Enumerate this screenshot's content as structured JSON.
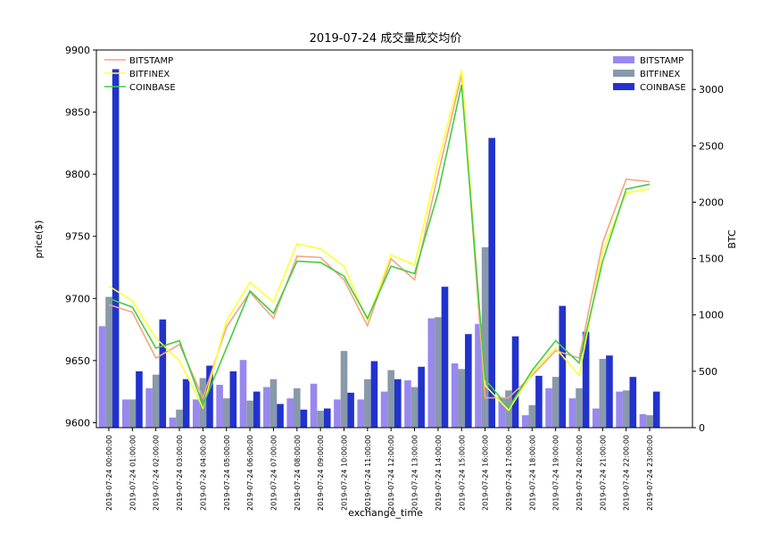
{
  "chart_data": {
    "type": "bar",
    "title": "2019-07-24 成交量成交均价",
    "xlabel": "exchange_time",
    "ylabel_left": "price($)",
    "ylabel_right": "BTC",
    "ylim_left": [
      9596,
      9900
    ],
    "ylim_right": [
      0,
      3350
    ],
    "yticks_left": [
      9600,
      9650,
      9700,
      9750,
      9800,
      9850,
      9900
    ],
    "yticks_right": [
      0,
      500,
      1000,
      1500,
      2000,
      2500,
      3000
    ],
    "categories": [
      "2019-07-24 00:00:00",
      "2019-07-24 01:00:00",
      "2019-07-24 02:00:00",
      "2019-07-24 03:00:00",
      "2019-07-24 04:00:00",
      "2019-07-24 05:00:00",
      "2019-07-24 06:00:00",
      "2019-07-24 07:00:00",
      "2019-07-24 08:00:00",
      "2019-07-24 09:00:00",
      "2019-07-24 10:00:00",
      "2019-07-24 11:00:00",
      "2019-07-24 12:00:00",
      "2019-07-24 13:00:00",
      "2019-07-24 14:00:00",
      "2019-07-24 15:00:00",
      "2019-07-24 16:00:00",
      "2019-07-24 17:00:00",
      "2019-07-24 18:00:00",
      "2019-07-24 19:00:00",
      "2019-07-24 20:00:00",
      "2019-07-24 21:00:00",
      "2019-07-24 22:00:00",
      "2019-07-24 23:00:00"
    ],
    "line_series": [
      {
        "name": "BITSTAMP",
        "color": "#f4a582",
        "values": [
          9695,
          9689,
          9652,
          9663,
          9620,
          9677,
          9705,
          9684,
          9734,
          9733,
          9715,
          9678,
          9732,
          9715,
          9800,
          9880,
          9620,
          9620,
          9638,
          9658,
          9652,
          9745,
          9796,
          9794
        ]
      },
      {
        "name": "BITFINEX",
        "color": "#ffff33",
        "values": [
          9710,
          9698,
          9668,
          9650,
          9612,
          9682,
          9713,
          9697,
          9744,
          9740,
          9726,
          9682,
          9735,
          9727,
          9810,
          9884,
          9630,
          9610,
          9640,
          9660,
          9638,
          9738,
          9785,
          9788
        ]
      },
      {
        "name": "COINBASE",
        "color": "#44cc44",
        "values": [
          9700,
          9693,
          9660,
          9666,
          9614,
          9660,
          9706,
          9688,
          9730,
          9729,
          9718,
          9684,
          9726,
          9720,
          9785,
          9872,
          9635,
          9612,
          9642,
          9666,
          9648,
          9730,
          9788,
          9792
        ]
      }
    ],
    "bar_series": [
      {
        "name": "BITSTAMP",
        "color": "#9988ee",
        "values": [
          900,
          250,
          350,
          90,
          250,
          380,
          600,
          360,
          260,
          390,
          250,
          250,
          320,
          420,
          970,
          570,
          920,
          260,
          110,
          350,
          260,
          170,
          320,
          120
        ]
      },
      {
        "name": "BITFINEX",
        "color": "#8899aa",
        "values": [
          1160,
          250,
          470,
          160,
          440,
          260,
          240,
          430,
          350,
          150,
          680,
          430,
          510,
          360,
          980,
          520,
          1600,
          330,
          200,
          450,
          350,
          610,
          330,
          110
        ]
      },
      {
        "name": "COINBASE",
        "color": "#2233cc",
        "values": [
          3180,
          500,
          960,
          430,
          550,
          500,
          320,
          210,
          160,
          170,
          310,
          590,
          430,
          540,
          1250,
          830,
          2570,
          810,
          460,
          1080,
          850,
          640,
          450,
          320
        ]
      }
    ],
    "legend_left_position": "top-left",
    "legend_right_position": "top-right",
    "grid": false
  }
}
